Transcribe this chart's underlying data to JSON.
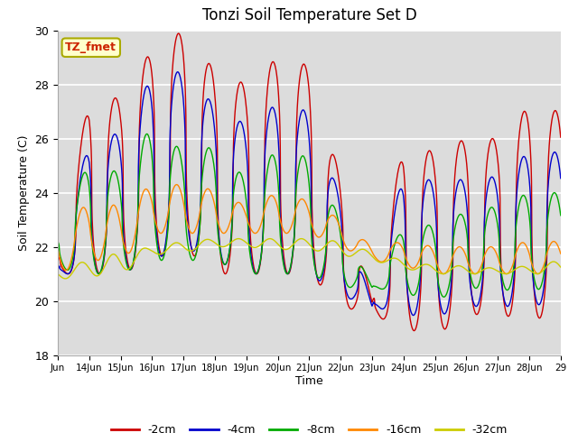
{
  "title": "Tonzi Soil Temperature Set D",
  "xlabel": "Time",
  "ylabel": "Soil Temperature (C)",
  "ylim": [
    18,
    30
  ],
  "xlim_days": [
    13,
    29
  ],
  "annotation": "TZ_fmet",
  "bg_color": "#dcdcdc",
  "fig_bg": "#ffffff",
  "series": {
    "-2cm": {
      "color": "#cc0000",
      "lw": 1.0
    },
    "-4cm": {
      "color": "#0000cc",
      "lw": 1.0
    },
    "-8cm": {
      "color": "#00aa00",
      "lw": 1.0
    },
    "-16cm": {
      "color": "#ff8800",
      "lw": 1.0
    },
    "-32cm": {
      "color": "#cccc00",
      "lw": 1.0
    }
  },
  "tick_days": [
    13,
    14,
    15,
    16,
    17,
    18,
    19,
    20,
    21,
    22,
    23,
    24,
    25,
    26,
    27,
    28,
    29
  ],
  "tick_labels": [
    "Jun",
    "14Jun",
    "15Jun",
    "16Jun",
    "17Jun",
    "18Jun",
    "19Jun",
    "20Jun",
    "21Jun",
    "22Jun",
    "23Jun",
    "24Jun",
    "25Jun",
    "26Jun",
    "27Jun",
    "28Jun",
    "29"
  ],
  "yticks": [
    18,
    20,
    22,
    24,
    26,
    28,
    30
  ],
  "grid_color": "#ffffff",
  "points_per_day": 96
}
